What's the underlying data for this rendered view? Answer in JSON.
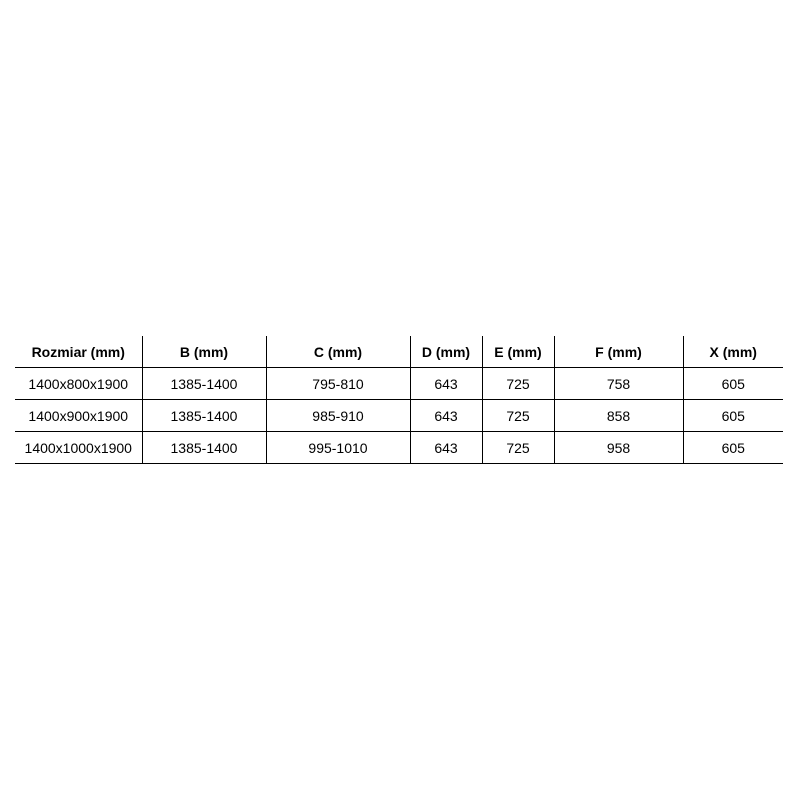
{
  "table": {
    "headers": [
      "Rozmiar (mm)",
      "B (mm)",
      "C (mm)",
      "D (mm)",
      "E (mm)",
      "F (mm)",
      "X (mm)"
    ],
    "rows": [
      [
        "1400x800x1900",
        "1385-1400",
        "795-810",
        "643",
        "725",
        "758",
        "605"
      ],
      [
        "1400x900x1900",
        "1385-1400",
        "985-910",
        "643",
        "725",
        "858",
        "605"
      ],
      [
        "1400x1000x1900",
        "1385-1400",
        "995-1010",
        "643",
        "725",
        "958",
        "605"
      ]
    ]
  }
}
